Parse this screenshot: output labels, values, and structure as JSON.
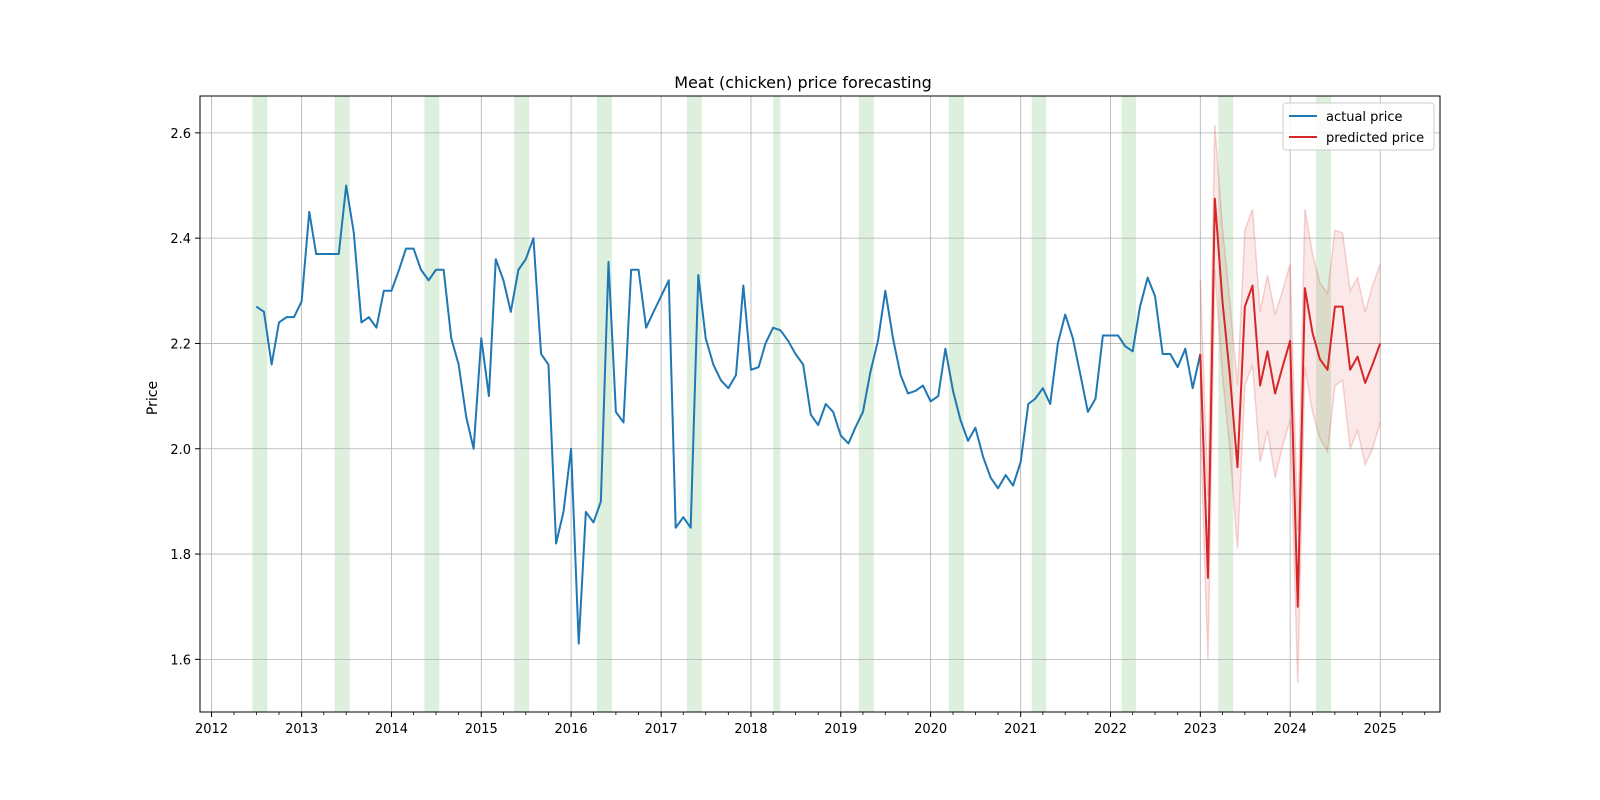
{
  "chart_data": {
    "type": "line",
    "title": "Meat (chicken) price forecasting",
    "xlabel": "",
    "ylabel": "Price",
    "xlim": [
      "2011-11-15",
      "2025-09-01"
    ],
    "ylim": [
      1.5,
      2.67
    ],
    "x_ticks": [
      "2012",
      "2013",
      "2014",
      "2015",
      "2016",
      "2017",
      "2018",
      "2019",
      "2020",
      "2021",
      "2022",
      "2023",
      "2024",
      "2025"
    ],
    "y_ticks": [
      1.6,
      1.8,
      2.0,
      2.2,
      2.4,
      2.6
    ],
    "grid": true,
    "legend": {
      "placement": "top-right",
      "entries": [
        {
          "label": "actual price",
          "color": "#1f77b4"
        },
        {
          "label": "predicted price",
          "color": "#d62728"
        }
      ]
    },
    "highlight_bands": [
      [
        "2012-06-15",
        "2012-08-15"
      ],
      [
        "2013-05-15",
        "2013-07-15"
      ],
      [
        "2014-05-15",
        "2014-07-15"
      ],
      [
        "2015-05-15",
        "2015-07-15"
      ],
      [
        "2016-04-15",
        "2016-06-15"
      ],
      [
        "2017-04-15",
        "2017-06-15"
      ],
      [
        "2018-04-01",
        "2018-05-01"
      ],
      [
        "2019-03-15",
        "2019-05-15"
      ],
      [
        "2020-03-15",
        "2020-05-15"
      ],
      [
        "2021-02-15",
        "2021-04-15"
      ],
      [
        "2022-02-15",
        "2022-04-15"
      ],
      [
        "2023-03-15",
        "2023-05-15"
      ],
      [
        "2024-04-15",
        "2024-06-15"
      ]
    ],
    "highlight_color": "#2ca02c",
    "series": [
      {
        "name": "actual price",
        "color": "#1f77b4",
        "x": [
          "2012-07",
          "2012-08",
          "2012-09",
          "2012-10",
          "2012-11",
          "2012-12",
          "2013-01",
          "2013-02",
          "2013-03",
          "2013-04",
          "2013-05",
          "2013-06",
          "2013-07",
          "2013-08",
          "2013-09",
          "2013-10",
          "2013-11",
          "2013-12",
          "2014-01",
          "2014-02",
          "2014-03",
          "2014-04",
          "2014-05",
          "2014-06",
          "2014-07",
          "2014-08",
          "2014-09",
          "2014-10",
          "2014-11",
          "2014-12",
          "2015-01",
          "2015-02",
          "2015-03",
          "2015-04",
          "2015-05",
          "2015-06",
          "2015-07",
          "2015-08",
          "2015-09",
          "2015-10",
          "2015-11",
          "2015-12",
          "2016-01",
          "2016-02",
          "2016-03",
          "2016-04",
          "2016-05",
          "2016-06",
          "2016-07",
          "2016-08",
          "2016-09",
          "2016-10",
          "2016-11",
          "2016-12",
          "2017-01",
          "2017-02",
          "2017-03",
          "2017-04",
          "2017-05",
          "2017-06",
          "2017-07",
          "2017-08",
          "2017-09",
          "2017-10",
          "2017-11",
          "2017-12",
          "2018-01",
          "2018-02",
          "2018-03",
          "2018-04",
          "2018-05",
          "2018-06",
          "2018-07",
          "2018-08",
          "2018-09",
          "2018-10",
          "2018-11",
          "2018-12",
          "2019-01",
          "2019-02",
          "2019-03",
          "2019-04",
          "2019-05",
          "2019-06",
          "2019-07",
          "2019-08",
          "2019-09",
          "2019-10",
          "2019-11",
          "2019-12",
          "2020-01",
          "2020-02",
          "2020-03",
          "2020-04",
          "2020-05",
          "2020-06",
          "2020-07",
          "2020-08",
          "2020-09",
          "2020-10",
          "2020-11",
          "2020-12",
          "2021-01",
          "2021-02",
          "2021-03",
          "2021-04",
          "2021-05",
          "2021-06",
          "2021-07",
          "2021-08",
          "2021-09",
          "2021-10",
          "2021-11",
          "2021-12",
          "2022-01",
          "2022-02",
          "2022-03",
          "2022-04",
          "2022-05",
          "2022-06",
          "2022-07",
          "2022-08",
          "2022-09",
          "2022-10",
          "2022-11",
          "2022-12",
          "2023-01"
        ],
        "values": [
          2.27,
          2.26,
          2.16,
          2.24,
          2.25,
          2.25,
          2.28,
          2.45,
          2.37,
          2.37,
          2.37,
          2.37,
          2.5,
          2.41,
          2.24,
          2.25,
          2.23,
          2.3,
          2.3,
          2.34,
          2.38,
          2.38,
          2.34,
          2.32,
          2.34,
          2.34,
          2.21,
          2.16,
          2.06,
          2.0,
          2.21,
          2.1,
          2.36,
          2.32,
          2.26,
          2.34,
          2.36,
          2.4,
          2.18,
          2.16,
          1.82,
          1.88,
          2.0,
          1.63,
          1.88,
          1.86,
          1.9,
          2.355,
          2.07,
          2.05,
          2.34,
          2.34,
          2.23,
          2.26,
          2.29,
          2.32,
          1.85,
          1.87,
          1.85,
          2.33,
          2.21,
          2.16,
          2.13,
          2.115,
          2.14,
          2.31,
          2.15,
          2.155,
          2.2,
          2.23,
          2.225,
          2.205,
          2.18,
          2.16,
          2.065,
          2.045,
          2.085,
          2.07,
          2.025,
          2.01,
          2.04,
          2.07,
          2.145,
          2.205,
          2.3,
          2.21,
          2.14,
          2.105,
          2.11,
          2.12,
          2.09,
          2.1,
          2.19,
          2.11,
          2.055,
          2.015,
          2.04,
          1.985,
          1.945,
          1.925,
          1.95,
          1.93,
          1.975,
          2.085,
          2.095,
          2.115,
          2.085,
          2.2,
          2.255,
          2.21,
          2.14,
          2.07,
          2.095,
          2.215,
          2.215,
          2.215,
          2.195,
          2.185,
          2.27,
          2.325,
          2.29,
          2.18,
          2.18,
          2.155,
          2.19,
          2.115,
          2.18
        ]
      },
      {
        "name": "predicted price",
        "color": "#d62728",
        "x": [
          "2023-01",
          "2023-02",
          "2023-03",
          "2023-04",
          "2023-05",
          "2023-06",
          "2023-07",
          "2023-08",
          "2023-09",
          "2023-10",
          "2023-11",
          "2023-12",
          "2024-01",
          "2024-02",
          "2024-03",
          "2024-04",
          "2024-05",
          "2024-06",
          "2024-07",
          "2024-08",
          "2024-09",
          "2024-10",
          "2024-11",
          "2024-12",
          "2025-01"
        ],
        "values": [
          2.18,
          1.755,
          2.475,
          2.28,
          2.14,
          1.965,
          2.27,
          2.31,
          2.12,
          2.185,
          2.105,
          2.155,
          2.205,
          1.7,
          2.305,
          2.22,
          2.17,
          2.15,
          2.27,
          2.27,
          2.15,
          2.175,
          2.125,
          2.16,
          2.2
        ],
        "lower": [
          2.04,
          1.6,
          2.34,
          2.14,
          2.0,
          1.81,
          2.12,
          2.16,
          1.975,
          2.035,
          1.945,
          2.005,
          2.055,
          1.555,
          2.155,
          2.07,
          2.02,
          1.995,
          2.12,
          2.13,
          2.0,
          2.035,
          1.97,
          2.0,
          2.05
        ],
        "upper": [
          2.32,
          1.91,
          2.615,
          2.42,
          2.28,
          2.12,
          2.415,
          2.455,
          2.26,
          2.33,
          2.255,
          2.3,
          2.35,
          1.845,
          2.455,
          2.37,
          2.315,
          2.295,
          2.415,
          2.41,
          2.3,
          2.325,
          2.26,
          2.31,
          2.35
        ]
      }
    ]
  }
}
